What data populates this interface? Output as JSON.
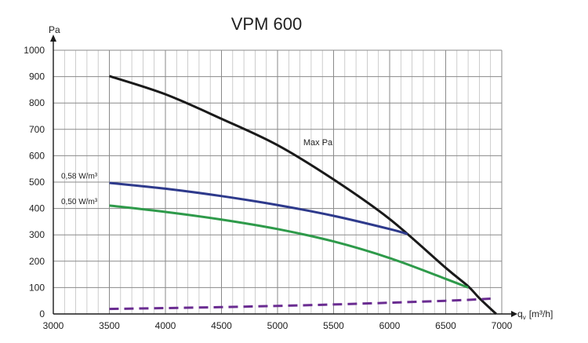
{
  "chart_data": {
    "type": "line",
    "title": "VPM 600",
    "ylabel": "Pa",
    "xlabel": "q",
    "xlabel_sub": "v",
    "xlabel_unit": "[m³/h]",
    "xlim": [
      3000,
      7000
    ],
    "ylim": [
      0,
      1000
    ],
    "x_ticks": [
      3000,
      3500,
      4000,
      4500,
      5000,
      5500,
      6000,
      6500,
      7000
    ],
    "y_ticks": [
      0,
      100,
      200,
      300,
      400,
      500,
      600,
      700,
      800,
      900,
      1000
    ],
    "x_minor_step": 100,
    "y_minor_step": 100,
    "grid": true,
    "series": [
      {
        "name": "Max Pa",
        "color": "#1a1a1a",
        "style": "solid",
        "x": [
          3500,
          4000,
          4500,
          5000,
          5500,
          6000,
          6500,
          6700,
          6800,
          6950
        ],
        "y": [
          902,
          833,
          740,
          640,
          510,
          360,
          175,
          105,
          60,
          0
        ]
      },
      {
        "name": "0,58 W/m³",
        "color": "#2e3a8c",
        "style": "solid",
        "x": [
          3500,
          4000,
          4500,
          5000,
          5500,
          6000,
          6160
        ],
        "y": [
          497,
          475,
          447,
          413,
          372,
          322,
          303
        ]
      },
      {
        "name": "0,50 W/m³",
        "color": "#2e9a4a",
        "style": "solid",
        "x": [
          3500,
          4000,
          4500,
          5000,
          5500,
          6000,
          6500,
          6700
        ],
        "y": [
          411,
          387,
          358,
          322,
          275,
          212,
          133,
          100
        ]
      },
      {
        "name": "",
        "color": "#6a2c91",
        "style": "dashed",
        "x": [
          3500,
          4500,
          5500,
          6500,
          6900
        ],
        "y": [
          19,
          26,
          36,
          50,
          58
        ]
      }
    ],
    "annotations": [
      {
        "text": "Max Pa",
        "x": 5230,
        "y": 640
      },
      {
        "text": "0,58 W/m³",
        "x": 3070,
        "y": 513
      },
      {
        "text": "0,50 W/m³",
        "x": 3070,
        "y": 416
      }
    ]
  }
}
